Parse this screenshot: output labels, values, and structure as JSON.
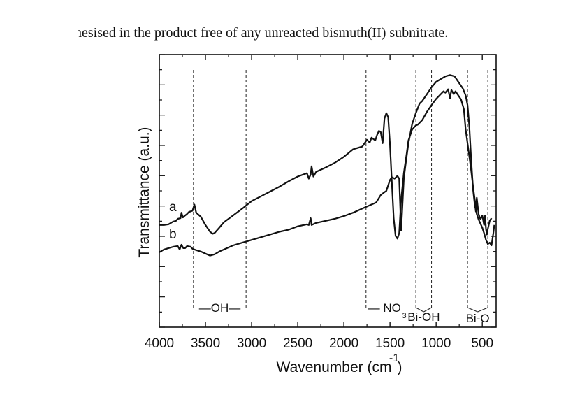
{
  "caption": "hesised in the product free of any unreacted bismuth(II) subnitrate.",
  "chart_data": {
    "type": "line",
    "xlabel": "Wavenumber (cm",
    "xlabel_superscript": "-1",
    "xlabel_close": ")",
    "ylabel": "Transmittance (a.u.)",
    "xlim": [
      4000,
      350
    ],
    "x_reversed": true,
    "xticks": [
      4000,
      3500,
      3000,
      2500,
      2000,
      1500,
      1000,
      500
    ],
    "y_ticks_unlabeled": true,
    "grid": false,
    "series": [
      {
        "name": "a",
        "points": [
          [
            4000,
            0.9
          ],
          [
            3950,
            0.9
          ],
          [
            3900,
            0.895
          ],
          [
            3850,
            0.875
          ],
          [
            3820,
            0.87
          ],
          [
            3800,
            0.855
          ],
          [
            3770,
            0.85
          ],
          [
            3760,
            0.81
          ],
          [
            3745,
            0.845
          ],
          [
            3720,
            0.83
          ],
          [
            3700,
            0.82
          ],
          [
            3680,
            0.805
          ],
          [
            3660,
            0.8
          ],
          [
            3640,
            0.795
          ],
          [
            3620,
            0.75
          ],
          [
            3600,
            0.81
          ],
          [
            3550,
            0.84
          ],
          [
            3500,
            0.9
          ],
          [
            3450,
            0.95
          ],
          [
            3420,
            0.965
          ],
          [
            3400,
            0.958
          ],
          [
            3350,
            0.92
          ],
          [
            3300,
            0.88
          ],
          [
            3200,
            0.83
          ],
          [
            3100,
            0.78
          ],
          [
            3000,
            0.725
          ],
          [
            2900,
            0.69
          ],
          [
            2800,
            0.655
          ],
          [
            2700,
            0.62
          ],
          [
            2600,
            0.58
          ],
          [
            2500,
            0.545
          ],
          [
            2400,
            0.52
          ],
          [
            2380,
            0.56
          ],
          [
            2360,
            0.53
          ],
          [
            2350,
            0.47
          ],
          [
            2330,
            0.545
          ],
          [
            2300,
            0.51
          ],
          [
            2200,
            0.48
          ],
          [
            2100,
            0.445
          ],
          [
            2000,
            0.4
          ],
          [
            1900,
            0.345
          ],
          [
            1800,
            0.325
          ],
          [
            1750,
            0.275
          ],
          [
            1720,
            0.295
          ],
          [
            1700,
            0.26
          ],
          [
            1660,
            0.28
          ],
          [
            1640,
            0.24
          ],
          [
            1620,
            0.21
          ],
          [
            1600,
            0.22
          ],
          [
            1580,
            0.3
          ],
          [
            1560,
            0.12
          ],
          [
            1540,
            0.08
          ],
          [
            1520,
            0.11
          ],
          [
            1500,
            0.31
          ],
          [
            1480,
            0.59
          ],
          [
            1460,
            0.85
          ],
          [
            1440,
            0.98
          ],
          [
            1420,
            1.0
          ],
          [
            1400,
            0.96
          ],
          [
            1380,
            0.72
          ],
          [
            1350,
            0.52
          ],
          [
            1320,
            0.38
          ],
          [
            1300,
            0.28
          ],
          [
            1260,
            0.2
          ],
          [
            1220,
            0.17
          ],
          [
            1200,
            0.165
          ],
          [
            1150,
            0.13
          ],
          [
            1100,
            0.07
          ],
          [
            1050,
            0.02
          ],
          [
            1000,
            -0.025
          ],
          [
            950,
            -0.06
          ],
          [
            920,
            -0.08
          ],
          [
            900,
            -0.07
          ],
          [
            870,
            -0.095
          ],
          [
            850,
            -0.03
          ],
          [
            835,
            -0.09
          ],
          [
            810,
            -0.06
          ],
          [
            790,
            -0.08
          ],
          [
            760,
            -0.05
          ],
          [
            730,
            -0.02
          ],
          [
            700,
            0.05
          ],
          [
            680,
            0.2
          ],
          [
            650,
            0.35
          ],
          [
            620,
            0.5
          ],
          [
            600,
            0.62
          ],
          [
            580,
            0.72
          ],
          [
            570,
            0.8
          ],
          [
            560,
            0.7
          ],
          [
            540,
            0.82
          ],
          [
            520,
            0.86
          ],
          [
            500,
            0.83
          ],
          [
            480,
            0.9
          ],
          [
            470,
            0.83
          ],
          [
            460,
            0.93
          ],
          [
            450,
            0.97
          ],
          [
            440,
            0.93
          ],
          [
            420,
            0.87
          ],
          [
            400,
            0.85
          ]
        ]
      },
      {
        "name": "b",
        "points": [
          [
            4000,
            1.1
          ],
          [
            3950,
            1.08
          ],
          [
            3900,
            1.07
          ],
          [
            3850,
            1.06
          ],
          [
            3800,
            1.055
          ],
          [
            3780,
            1.08
          ],
          [
            3760,
            1.045
          ],
          [
            3740,
            1.07
          ],
          [
            3720,
            1.07
          ],
          [
            3700,
            1.055
          ],
          [
            3660,
            1.06
          ],
          [
            3640,
            1.075
          ],
          [
            3620,
            1.08
          ],
          [
            3600,
            1.085
          ],
          [
            3550,
            1.095
          ],
          [
            3500,
            1.11
          ],
          [
            3450,
            1.125
          ],
          [
            3400,
            1.115
          ],
          [
            3350,
            1.095
          ],
          [
            3300,
            1.08
          ],
          [
            3200,
            1.05
          ],
          [
            3100,
            1.03
          ],
          [
            3000,
            1.01
          ],
          [
            2900,
            0.99
          ],
          [
            2800,
            0.97
          ],
          [
            2700,
            0.95
          ],
          [
            2600,
            0.935
          ],
          [
            2500,
            0.91
          ],
          [
            2400,
            0.895
          ],
          [
            2380,
            0.9
          ],
          [
            2360,
            0.85
          ],
          [
            2350,
            0.9
          ],
          [
            2300,
            0.885
          ],
          [
            2200,
            0.87
          ],
          [
            2100,
            0.855
          ],
          [
            2000,
            0.835
          ],
          [
            1900,
            0.81
          ],
          [
            1800,
            0.78
          ],
          [
            1700,
            0.75
          ],
          [
            1650,
            0.735
          ],
          [
            1600,
            0.68
          ],
          [
            1560,
            0.66
          ],
          [
            1540,
            0.65
          ],
          [
            1520,
            0.61
          ],
          [
            1500,
            0.57
          ],
          [
            1480,
            0.55
          ],
          [
            1450,
            0.56
          ],
          [
            1420,
            0.54
          ],
          [
            1400,
            0.56
          ],
          [
            1380,
            0.94
          ],
          [
            1370,
            0.82
          ],
          [
            1350,
            0.56
          ],
          [
            1330,
            0.45
          ],
          [
            1300,
            0.3
          ],
          [
            1260,
            0.16
          ],
          [
            1220,
            0.08
          ],
          [
            1180,
            0.01
          ],
          [
            1150,
            -0.01
          ],
          [
            1100,
            -0.06
          ],
          [
            1050,
            -0.11
          ],
          [
            1000,
            -0.15
          ],
          [
            950,
            -0.17
          ],
          [
            900,
            -0.19
          ],
          [
            850,
            -0.2
          ],
          [
            800,
            -0.19
          ],
          [
            770,
            -0.16
          ],
          [
            740,
            -0.13
          ],
          [
            710,
            -0.1
          ],
          [
            680,
            -0.05
          ],
          [
            660,
            0.02
          ],
          [
            640,
            0.18
          ],
          [
            620,
            0.42
          ],
          [
            600,
            0.64
          ],
          [
            580,
            0.76
          ],
          [
            560,
            0.82
          ],
          [
            540,
            0.86
          ],
          [
            520,
            0.89
          ],
          [
            500,
            0.92
          ],
          [
            480,
            0.96
          ],
          [
            460,
            1.01
          ],
          [
            440,
            1.04
          ],
          [
            420,
            1.03
          ],
          [
            400,
            1.05
          ],
          [
            380,
            0.96
          ],
          [
            370,
            0.9
          ]
        ]
      }
    ],
    "reference_lines": [
      3630,
      3060,
      1760,
      1220,
      1050,
      660,
      440
    ],
    "annotations": [
      {
        "label": "—OH—",
        "x": 3345
      },
      {
        "label": "— NO",
        "x": 1560,
        "subscript": "3",
        "sub_x": 1345
      },
      {
        "label": "Bi-OH",
        "x": 1135
      },
      {
        "label": "Bi-O",
        "x": 550
      }
    ],
    "bracket_marks": [
      {
        "from": 1220,
        "to": 1135
      },
      {
        "from": 1050,
        "to": 1135
      },
      {
        "from": 660,
        "to": 550
      },
      {
        "from": 440,
        "to": 550
      }
    ]
  }
}
